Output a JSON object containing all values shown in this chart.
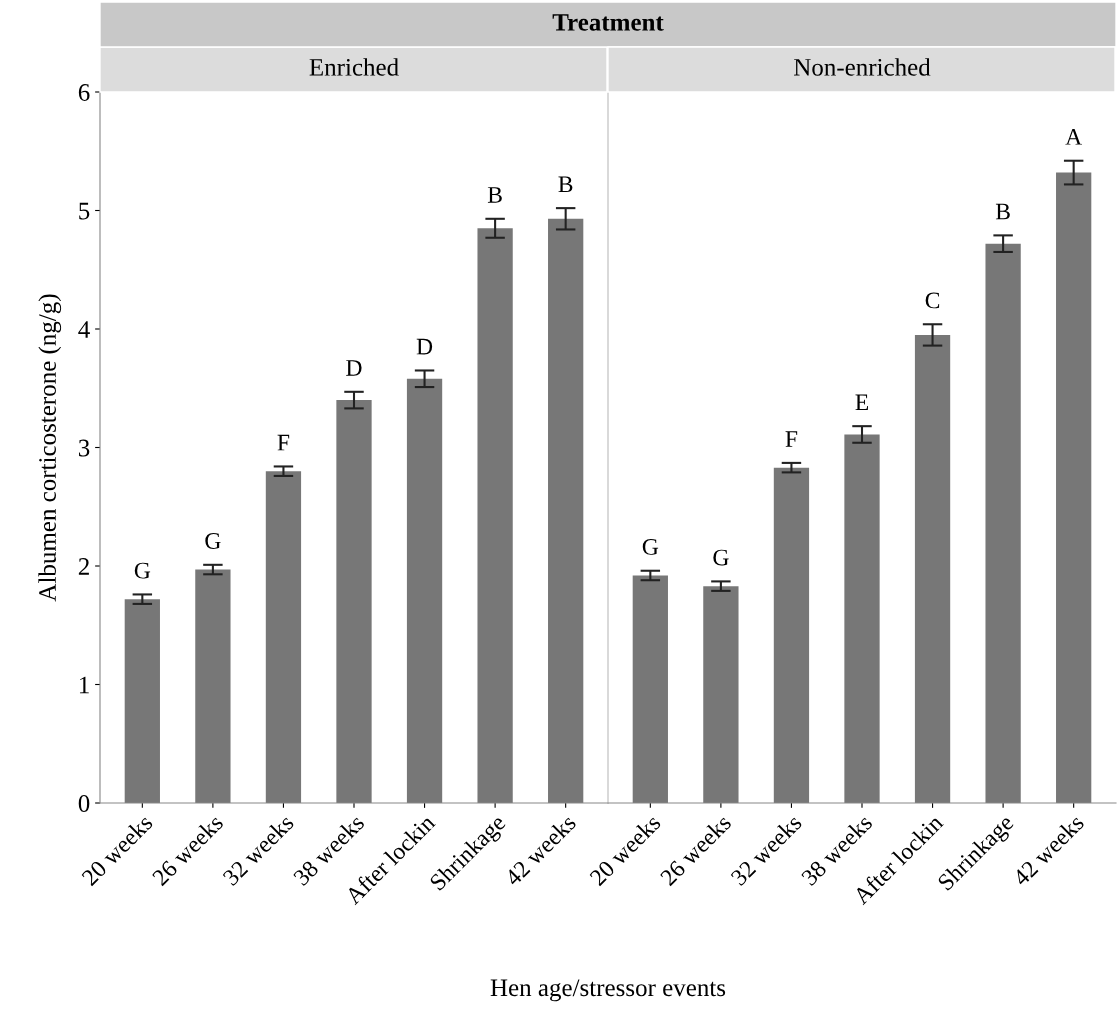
{
  "chart_data": [
    {
      "type": "bar",
      "title": "Treatment",
      "subtitle": "Enriched",
      "xlabel": "Hen age/stressor events",
      "ylabel": "Albumen corticosterone (ng/g)",
      "categories": [
        "20 weeks",
        "26 weeks",
        "32 weeks",
        "38 weeks",
        "After lockin",
        "Shrinkage",
        "42 weeks"
      ],
      "values": [
        1.72,
        1.97,
        2.8,
        3.4,
        3.58,
        4.85,
        4.93
      ],
      "errors": [
        0.04,
        0.04,
        0.04,
        0.07,
        0.07,
        0.08,
        0.09
      ],
      "color": "#777777",
      "ylim": [
        0,
        6
      ],
      "yticks": [
        0,
        1,
        2,
        3,
        4,
        5,
        6
      ],
      "grid": false,
      "annotations": [
        {
          "text": "G",
          "x": "20 weeks",
          "y": 1.76
        },
        {
          "text": "G",
          "x": "26 weeks",
          "y": 2.01
        },
        {
          "text": "F",
          "x": "32 weeks",
          "y": 2.84
        },
        {
          "text": "D",
          "x": "38 weeks",
          "y": 3.47
        },
        {
          "text": "D",
          "x": "After lockin",
          "y": 3.65
        },
        {
          "text": "B",
          "x": "Shrinkage",
          "y": 4.93
        },
        {
          "text": "B",
          "x": "42 weeks",
          "y": 5.02
        }
      ]
    },
    {
      "type": "bar",
      "subtitle": "Non-enriched",
      "categories": [
        "20 weeks",
        "26 weeks",
        "32 weeks",
        "38 weeks",
        "After lockin",
        "Shrinkage",
        "42 weeks"
      ],
      "values": [
        1.92,
        1.83,
        2.83,
        3.11,
        3.95,
        4.72,
        5.32
      ],
      "errors": [
        0.04,
        0.04,
        0.04,
        0.07,
        0.09,
        0.07,
        0.1
      ],
      "color": "#777777",
      "ylim": [
        0,
        6
      ],
      "yticks": [
        0,
        1,
        2,
        3,
        4,
        5,
        6
      ],
      "grid": false,
      "tick_labels": "x",
      "annotations": [
        {
          "text": "G",
          "x": "20 weeks",
          "y": 1.96
        },
        {
          "text": "G",
          "x": "26 weeks",
          "y": 1.87
        },
        {
          "text": "F",
          "x": "32 weeks",
          "y": 2.87
        },
        {
          "text": "E",
          "x": "38 weeks",
          "y": 3.18
        },
        {
          "text": "C",
          "x": "After lockin",
          "y": 4.04
        },
        {
          "text": "B",
          "x": "Shrinkage",
          "y": 4.79
        },
        {
          "text": "A",
          "x": "42 weeks",
          "y": 5.42
        }
      ]
    }
  ]
}
